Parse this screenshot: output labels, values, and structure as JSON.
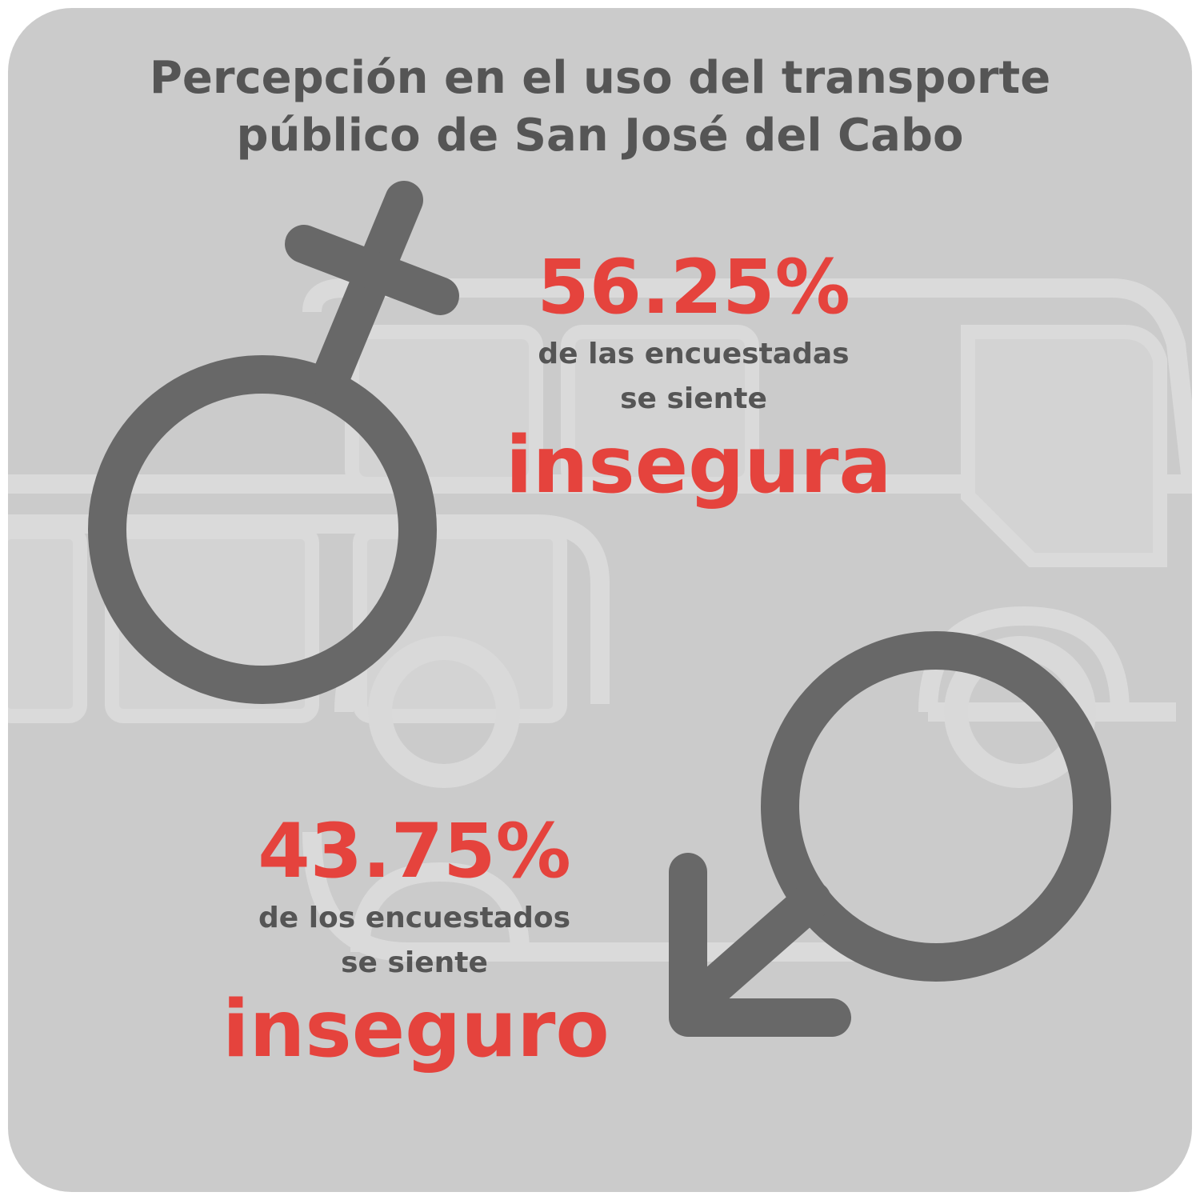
{
  "title": {
    "line1": "Percepción en el uso del transporte",
    "line2": "público de San José del Cabo"
  },
  "female": {
    "percent": "56.25%",
    "line1": "de las encuestadas",
    "line2": "se siente",
    "emphasis": "insegura",
    "icon": "female-symbol-icon"
  },
  "male": {
    "percent": "43.75%",
    "line1": "de los encuestados",
    "line2": "se siente",
    "emphasis": "inseguro",
    "icon": "male-symbol-icon"
  },
  "background_icon": "bus-icon",
  "colors": {
    "background": "#cbcbcb",
    "accent": "#e5433d",
    "text": "#555555",
    "symbol": "#686868",
    "bus": "#d9d9d9"
  }
}
